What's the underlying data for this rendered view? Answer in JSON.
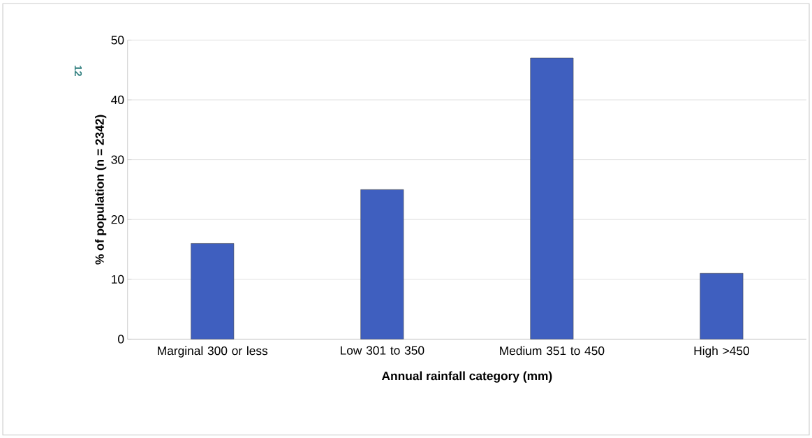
{
  "chart_data": {
    "type": "bar",
    "xlabel": "Annual rainfall category (mm)",
    "ylabel": "% of population  (n = 2342)",
    "categories": [
      "Marginal 300 or less",
      "Low 301 to 350",
      "Medium 351 to 450",
      "High >450"
    ],
    "values": [
      16,
      25,
      47,
      11
    ],
    "color": "#3f5fbf",
    "ylim": [
      0,
      50
    ],
    "yticks": [
      0,
      10,
      20,
      30,
      40,
      50
    ],
    "grid": "y",
    "annotations": [
      "12"
    ]
  }
}
